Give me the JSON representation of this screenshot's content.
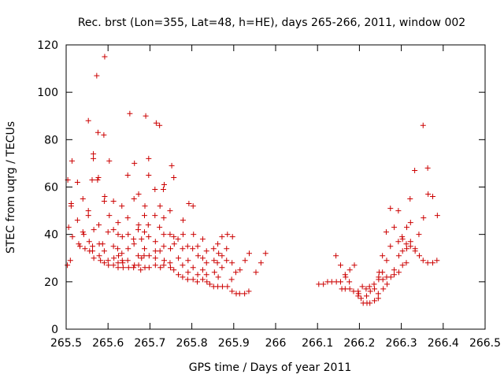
{
  "chart_data": {
    "type": "scatter",
    "title": "Rec. brst (Lon=355, Lat=48, h=HE), days 265-266, 2011, window 002",
    "xlabel": "GPS time / Days of year 2011",
    "ylabel": "STEC from uqrg / TECUs",
    "xlim": [
      265.5,
      266.5
    ],
    "ylim": [
      0,
      120
    ],
    "x_ticks": [
      265.5,
      265.6,
      265.7,
      265.8,
      265.9,
      266.0,
      266.1,
      266.2,
      266.3,
      266.4,
      266.5
    ],
    "x_tick_labels": [
      "265.5",
      "265.6",
      "265.7",
      "265.8",
      "265.9",
      "266",
      "266.1",
      "266.2",
      "266.3",
      "266.4",
      "266.5"
    ],
    "y_ticks": [
      0,
      20,
      40,
      60,
      80,
      100,
      120
    ],
    "y_tick_labels": [
      "0",
      "20",
      "40",
      "60",
      "80",
      "100",
      "120"
    ],
    "marker": "+",
    "marker_color": "#cc0000",
    "grid": false,
    "series": [
      {
        "name": "STEC",
        "points": [
          [
            265.504,
            63
          ],
          [
            265.506,
            43
          ],
          [
            265.503,
            27
          ],
          [
            265.514,
            71
          ],
          [
            265.512,
            53
          ],
          [
            265.512,
            52
          ],
          [
            265.515,
            39
          ],
          [
            265.51,
            29
          ],
          [
            265.527,
            62
          ],
          [
            265.527,
            46
          ],
          [
            265.53,
            36
          ],
          [
            265.533,
            35
          ],
          [
            265.54,
            55
          ],
          [
            265.54,
            41
          ],
          [
            265.542,
            40
          ],
          [
            265.545,
            34
          ],
          [
            265.553,
            88
          ],
          [
            265.553,
            50
          ],
          [
            265.553,
            48
          ],
          [
            265.555,
            37
          ],
          [
            265.556,
            33
          ],
          [
            265.565,
            74
          ],
          [
            265.565,
            72
          ],
          [
            265.562,
            63
          ],
          [
            265.566,
            42
          ],
          [
            265.563,
            35
          ],
          [
            265.563,
            33
          ],
          [
            265.566,
            30
          ],
          [
            265.573,
            107
          ],
          [
            265.576,
            83
          ],
          [
            265.577,
            64
          ],
          [
            265.575,
            63
          ],
          [
            265.578,
            44
          ],
          [
            265.579,
            36
          ],
          [
            265.579,
            31
          ],
          [
            265.582,
            29
          ],
          [
            265.592,
            115
          ],
          [
            265.59,
            82
          ],
          [
            265.592,
            56
          ],
          [
            265.591,
            54
          ],
          [
            265.587,
            36
          ],
          [
            265.591,
            33
          ],
          [
            265.591,
            28
          ],
          [
            265.603,
            71
          ],
          [
            265.603,
            48
          ],
          [
            265.6,
            41
          ],
          [
            265.6,
            29
          ],
          [
            265.601,
            27
          ],
          [
            265.613,
            54
          ],
          [
            265.613,
            42
          ],
          [
            265.613,
            35
          ],
          [
            265.614,
            30
          ],
          [
            265.613,
            27
          ],
          [
            265.624,
            45
          ],
          [
            265.624,
            40
          ],
          [
            265.623,
            34
          ],
          [
            265.625,
            31
          ],
          [
            265.624,
            28
          ],
          [
            265.624,
            26
          ],
          [
            265.633,
            52
          ],
          [
            265.634,
            39
          ],
          [
            265.633,
            32
          ],
          [
            265.634,
            29
          ],
          [
            265.635,
            28
          ],
          [
            265.636,
            26
          ],
          [
            265.652,
            91
          ],
          [
            265.647,
            65
          ],
          [
            265.647,
            47
          ],
          [
            265.648,
            40
          ],
          [
            265.648,
            34
          ],
          [
            265.647,
            29
          ],
          [
            265.649,
            26
          ],
          [
            265.663,
            70
          ],
          [
            265.662,
            55
          ],
          [
            265.661,
            38
          ],
          [
            265.662,
            36
          ],
          [
            265.663,
            27
          ],
          [
            265.661,
            26
          ],
          [
            265.673,
            57
          ],
          [
            265.673,
            44
          ],
          [
            265.672,
            42
          ],
          [
            265.672,
            31
          ],
          [
            265.673,
            27
          ],
          [
            265.68,
            38
          ],
          [
            265.68,
            30
          ],
          [
            265.678,
            25
          ],
          [
            265.69,
            90
          ],
          [
            265.688,
            52
          ],
          [
            265.687,
            48
          ],
          [
            265.687,
            41
          ],
          [
            265.687,
            34
          ],
          [
            265.686,
            31
          ],
          [
            265.688,
            26
          ],
          [
            265.697,
            72
          ],
          [
            265.697,
            65
          ],
          [
            265.696,
            44
          ],
          [
            265.697,
            39
          ],
          [
            265.698,
            31
          ],
          [
            265.698,
            26
          ],
          [
            265.715,
            87
          ],
          [
            265.712,
            59
          ],
          [
            265.712,
            48
          ],
          [
            265.713,
            37
          ],
          [
            265.713,
            33
          ],
          [
            265.713,
            30
          ],
          [
            265.713,
            27
          ],
          [
            265.723,
            86
          ],
          [
            265.724,
            52
          ],
          [
            265.723,
            43
          ],
          [
            265.724,
            33
          ],
          [
            265.725,
            26
          ],
          [
            265.734,
            61
          ],
          [
            265.732,
            59
          ],
          [
            265.733,
            47
          ],
          [
            265.733,
            40
          ],
          [
            265.733,
            35
          ],
          [
            265.734,
            29
          ],
          [
            265.733,
            27
          ],
          [
            265.752,
            69
          ],
          [
            265.748,
            50
          ],
          [
            265.748,
            40
          ],
          [
            265.749,
            34
          ],
          [
            265.748,
            28
          ],
          [
            265.749,
            26
          ],
          [
            265.757,
            64
          ],
          [
            265.757,
            39
          ],
          [
            265.758,
            36
          ],
          [
            265.757,
            25
          ],
          [
            265.767,
            38
          ],
          [
            265.768,
            30
          ],
          [
            265.768,
            23
          ],
          [
            265.779,
            46
          ],
          [
            265.779,
            40
          ],
          [
            265.778,
            34
          ],
          [
            265.778,
            27
          ],
          [
            265.778,
            22
          ],
          [
            265.793,
            53
          ],
          [
            265.79,
            35
          ],
          [
            265.791,
            29
          ],
          [
            265.791,
            24
          ],
          [
            265.79,
            21
          ],
          [
            265.803,
            52
          ],
          [
            265.804,
            40
          ],
          [
            265.802,
            34
          ],
          [
            265.803,
            26
          ],
          [
            265.803,
            21
          ],
          [
            265.814,
            35
          ],
          [
            265.815,
            31
          ],
          [
            265.814,
            23
          ],
          [
            265.813,
            20
          ],
          [
            265.826,
            38
          ],
          [
            265.826,
            30
          ],
          [
            265.826,
            25
          ],
          [
            265.826,
            21
          ],
          [
            265.835,
            33
          ],
          [
            265.835,
            28
          ],
          [
            265.835,
            23
          ],
          [
            265.836,
            20
          ],
          [
            265.843,
            19
          ],
          [
            265.852,
            34
          ],
          [
            265.853,
            29
          ],
          [
            265.854,
            24
          ],
          [
            265.852,
            18
          ],
          [
            265.862,
            36
          ],
          [
            265.864,
            32
          ],
          [
            265.861,
            28
          ],
          [
            265.863,
            22
          ],
          [
            265.862,
            18
          ],
          [
            265.872,
            39
          ],
          [
            265.872,
            31
          ],
          [
            265.872,
            26
          ],
          [
            265.873,
            18
          ],
          [
            265.885,
            40
          ],
          [
            265.883,
            34
          ],
          [
            265.883,
            29
          ],
          [
            265.885,
            18
          ],
          [
            265.897,
            39
          ],
          [
            265.896,
            28
          ],
          [
            265.895,
            21
          ],
          [
            265.896,
            16
          ],
          [
            265.905,
            24
          ],
          [
            265.906,
            15
          ],
          [
            265.915,
            25
          ],
          [
            265.914,
            15
          ],
          [
            265.927,
            29
          ],
          [
            265.926,
            15
          ],
          [
            265.936,
            16
          ],
          [
            265.937,
            32
          ],
          [
            265.953,
            24
          ],
          [
            265.965,
            28
          ],
          [
            265.976,
            32
          ],
          [
            266.103,
            19
          ],
          [
            266.114,
            19
          ],
          [
            266.124,
            20
          ],
          [
            266.134,
            20
          ],
          [
            266.144,
            31
          ],
          [
            266.145,
            20
          ],
          [
            266.155,
            27
          ],
          [
            266.155,
            20
          ],
          [
            266.158,
            17
          ],
          [
            266.166,
            23
          ],
          [
            266.167,
            22
          ],
          [
            266.166,
            17
          ],
          [
            266.177,
            25
          ],
          [
            266.176,
            20
          ],
          [
            266.177,
            17
          ],
          [
            266.186,
            16
          ],
          [
            266.188,
            27
          ],
          [
            266.197,
            16
          ],
          [
            266.198,
            15
          ],
          [
            266.197,
            14
          ],
          [
            266.204,
            13
          ],
          [
            266.207,
            18
          ],
          [
            266.209,
            11
          ],
          [
            266.216,
            17
          ],
          [
            266.217,
            14
          ],
          [
            266.218,
            11
          ],
          [
            266.224,
            18
          ],
          [
            266.226,
            16
          ],
          [
            266.225,
            11
          ],
          [
            266.235,
            19
          ],
          [
            266.236,
            17
          ],
          [
            266.236,
            12
          ],
          [
            266.247,
            24
          ],
          [
            266.246,
            22
          ],
          [
            266.246,
            21
          ],
          [
            266.245,
            15
          ],
          [
            266.245,
            13
          ],
          [
            266.255,
            31
          ],
          [
            266.255,
            24
          ],
          [
            266.256,
            21
          ],
          [
            266.257,
            17
          ],
          [
            266.264,
            41
          ],
          [
            266.265,
            29
          ],
          [
            266.265,
            22
          ],
          [
            266.266,
            19
          ],
          [
            266.274,
            51
          ],
          [
            266.274,
            35
          ],
          [
            266.275,
            22
          ],
          [
            266.283,
            43
          ],
          [
            266.283,
            25
          ],
          [
            266.283,
            23
          ],
          [
            266.293,
            50
          ],
          [
            266.293,
            37
          ],
          [
            266.294,
            31
          ],
          [
            266.294,
            24
          ],
          [
            266.302,
            39
          ],
          [
            266.303,
            38
          ],
          [
            266.303,
            33
          ],
          [
            266.303,
            27
          ],
          [
            266.313,
            43
          ],
          [
            266.312,
            36
          ],
          [
            266.313,
            34
          ],
          [
            266.312,
            28
          ],
          [
            266.321,
            55
          ],
          [
            266.322,
            45
          ],
          [
            266.322,
            37
          ],
          [
            266.322,
            35
          ],
          [
            266.332,
            67
          ],
          [
            266.333,
            34
          ],
          [
            266.333,
            33
          ],
          [
            266.342,
            40
          ],
          [
            266.343,
            31
          ],
          [
            266.352,
            86
          ],
          [
            266.353,
            47
          ],
          [
            266.352,
            29
          ],
          [
            266.363,
            68
          ],
          [
            266.364,
            57
          ],
          [
            266.363,
            28
          ],
          [
            266.375,
            56
          ],
          [
            266.375,
            28
          ],
          [
            266.386,
            48
          ],
          [
            266.385,
            29
          ]
        ]
      }
    ]
  }
}
